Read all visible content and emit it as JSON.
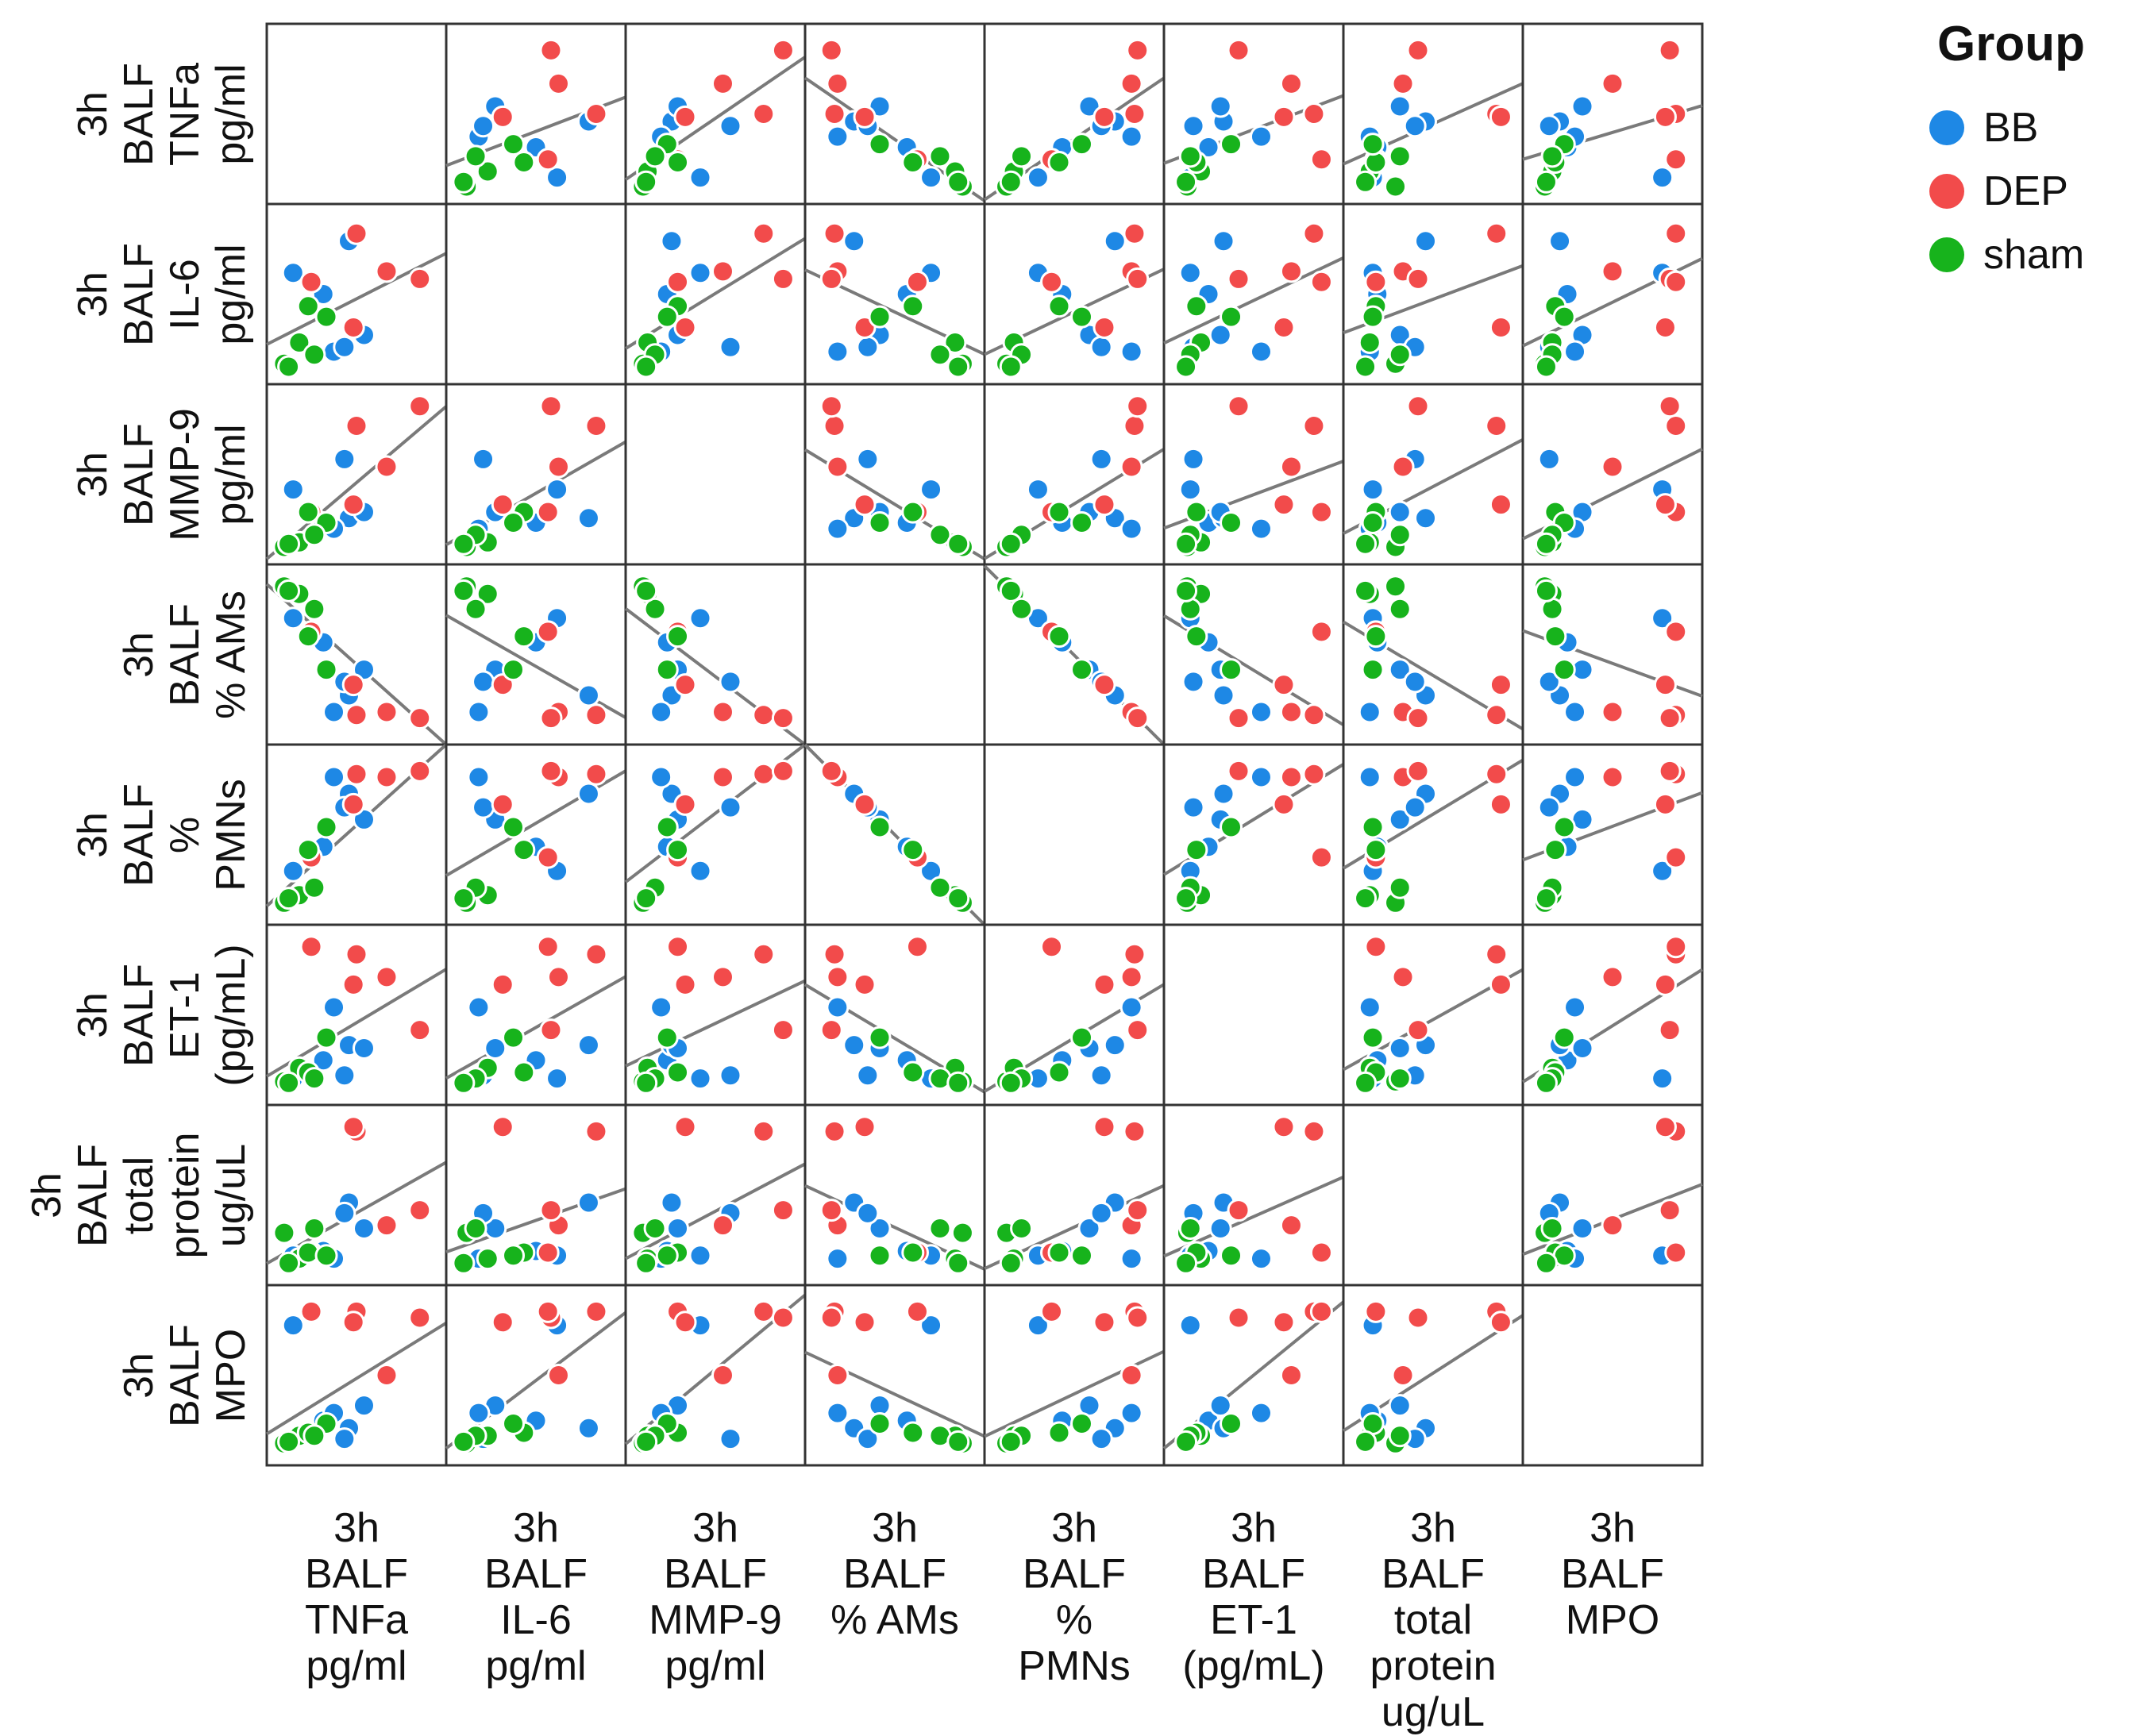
{
  "chart_data": {
    "type": "scatter-matrix",
    "variables": [
      {
        "id": "tnfa",
        "lines": [
          "3h",
          "BALF",
          "TNFa",
          "pg/ml"
        ]
      },
      {
        "id": "il6",
        "lines": [
          "3h",
          "BALF",
          "IL-6",
          "pg/ml"
        ]
      },
      {
        "id": "mmp9",
        "lines": [
          "3h",
          "BALF",
          "MMP-9",
          "pg/ml"
        ]
      },
      {
        "id": "ams",
        "lines": [
          "3h",
          "BALF",
          "% AMs"
        ]
      },
      {
        "id": "pmns",
        "lines": [
          "3h",
          "BALF",
          "%",
          "PMNs"
        ]
      },
      {
        "id": "et1",
        "lines": [
          "3h",
          "BALF",
          "ET-1",
          "(pg/mL)"
        ]
      },
      {
        "id": "protein",
        "lines": [
          "3h",
          "BALF",
          "total",
          "protein",
          "ug/uL"
        ]
      },
      {
        "id": "mpo",
        "lines": [
          "3h",
          "BALF",
          "MPO"
        ]
      }
    ],
    "legend": {
      "title": "Group",
      "position": "top-right",
      "groups": [
        {
          "name": "BB",
          "color": "#1e88e5"
        },
        {
          "name": "DEP",
          "color": "#f24b4b"
        },
        {
          "name": "sham",
          "color": "#17b31c"
        }
      ]
    },
    "scale": "normalized 0-1 per variable",
    "observations": [
      {
        "group": "BB",
        "tnfa": 0.08,
        "il6": 0.64,
        "mmp9": 0.4,
        "ams": 0.74,
        "pmns": 0.26,
        "et1": 0.08,
        "protein": 0.1,
        "mpo": 0.83
      },
      {
        "group": "BB",
        "tnfa": 0.28,
        "il6": 0.5,
        "mmp9": 0.18,
        "ams": 0.58,
        "pmns": 0.42,
        "et1": 0.2,
        "protein": 0.13,
        "mpo": 0.2
      },
      {
        "group": "BB",
        "tnfa": 0.45,
        "il6": 0.85,
        "mmp9": 0.21,
        "ams": 0.23,
        "pmns": 0.77,
        "et1": 0.3,
        "protein": 0.45,
        "mpo": 0.15
      },
      {
        "group": "BB",
        "tnfa": 0.55,
        "il6": 0.23,
        "mmp9": 0.25,
        "ams": 0.4,
        "pmns": 0.6,
        "et1": 0.28,
        "protein": 0.28,
        "mpo": 0.3
      },
      {
        "group": "BB",
        "tnfa": 0.35,
        "il6": 0.12,
        "mmp9": 0.14,
        "ams": 0.12,
        "pmns": 0.88,
        "et1": 0.55,
        "protein": 0.08,
        "mpo": 0.25
      },
      {
        "group": "BB",
        "tnfa": 0.42,
        "il6": 0.15,
        "mmp9": 0.6,
        "ams": 0.32,
        "pmns": 0.68,
        "et1": 0.1,
        "protein": 0.38,
        "mpo": 0.08
      },
      {
        "group": "DEP",
        "tnfa": 0.5,
        "il6": 0.9,
        "mmp9": 0.82,
        "ams": 0.1,
        "pmns": 0.9,
        "et1": 0.9,
        "protein": 0.92,
        "mpo": 0.92
      },
      {
        "group": "DEP",
        "tnfa": 0.7,
        "il6": 0.65,
        "mmp9": 0.55,
        "ams": 0.12,
        "pmns": 0.88,
        "et1": 0.75,
        "protein": 0.3,
        "mpo": 0.5
      },
      {
        "group": "DEP",
        "tnfa": 0.92,
        "il6": 0.6,
        "mmp9": 0.95,
        "ams": 0.08,
        "pmns": 0.92,
        "et1": 0.4,
        "protein": 0.4,
        "mpo": 0.88
      },
      {
        "group": "DEP",
        "tnfa": 0.2,
        "il6": 0.58,
        "mmp9": 0.25,
        "ams": 0.65,
        "pmns": 0.35,
        "et1": 0.95,
        "protein": 0.12,
        "mpo": 0.92
      },
      {
        "group": "DEP",
        "tnfa": 0.48,
        "il6": 0.28,
        "mmp9": 0.3,
        "ams": 0.3,
        "pmns": 0.7,
        "et1": 0.7,
        "protein": 0.95,
        "mpo": 0.85
      },
      {
        "group": "sham",
        "tnfa": 0.02,
        "il6": 0.04,
        "mmp9": 0.02,
        "ams": 0.95,
        "pmns": 0.05,
        "et1": 0.06,
        "protein": 0.25,
        "mpo": 0.05
      },
      {
        "group": "sham",
        "tnfa": 0.12,
        "il6": 0.18,
        "mmp9": 0.05,
        "ams": 0.9,
        "pmns": 0.1,
        "et1": 0.15,
        "protein": 0.08,
        "mpo": 0.1
      },
      {
        "group": "sham",
        "tnfa": 0.18,
        "il6": 0.42,
        "mmp9": 0.25,
        "ams": 0.62,
        "pmns": 0.4,
        "et1": 0.12,
        "protein": 0.12,
        "mpo": 0.12
      },
      {
        "group": "sham",
        "tnfa": 0.3,
        "il6": 0.35,
        "mmp9": 0.18,
        "ams": 0.4,
        "pmns": 0.55,
        "et1": 0.35,
        "protein": 0.1,
        "mpo": 0.18
      },
      {
        "group": "sham",
        "tnfa": 0.22,
        "il6": 0.1,
        "mmp9": 0.1,
        "ams": 0.8,
        "pmns": 0.15,
        "et1": 0.08,
        "protein": 0.28,
        "mpo": 0.1
      },
      {
        "group": "sham",
        "tnfa": 0.05,
        "il6": 0.02,
        "mmp9": 0.04,
        "ams": 0.92,
        "pmns": 0.08,
        "et1": 0.05,
        "protein": 0.05,
        "mpo": 0.06
      }
    ]
  }
}
